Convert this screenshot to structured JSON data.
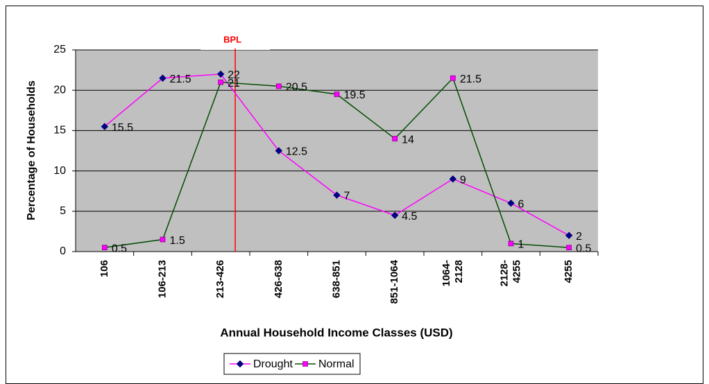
{
  "chart_data": {
    "type": "line",
    "annotation": "BPL",
    "xlabel": "Annual Household Income Classes (USD)",
    "ylabel": "Percentage of Households",
    "categories": [
      "106",
      "106-213",
      "213-426",
      "426-638",
      "638-851",
      "851-1064",
      "1064-2128",
      "2128-4255",
      "4255"
    ],
    "series": [
      {
        "name": "Drought",
        "color": "#ff00ff",
        "marker_color": "#000080",
        "marker": "diamond",
        "values": [
          15.5,
          21.5,
          22,
          12.5,
          7,
          4.5,
          9,
          6,
          2
        ]
      },
      {
        "name": "Normal",
        "color": "#004d00",
        "marker_color": "#ff00ff",
        "marker": "square",
        "values": [
          0.5,
          1.5,
          21,
          20.5,
          19.5,
          14,
          21.5,
          1,
          0.5
        ]
      }
    ],
    "ylim": [
      0,
      25
    ],
    "yticks": [
      0,
      5,
      10,
      15,
      20,
      25
    ],
    "grid": true,
    "legend": "bottom"
  }
}
